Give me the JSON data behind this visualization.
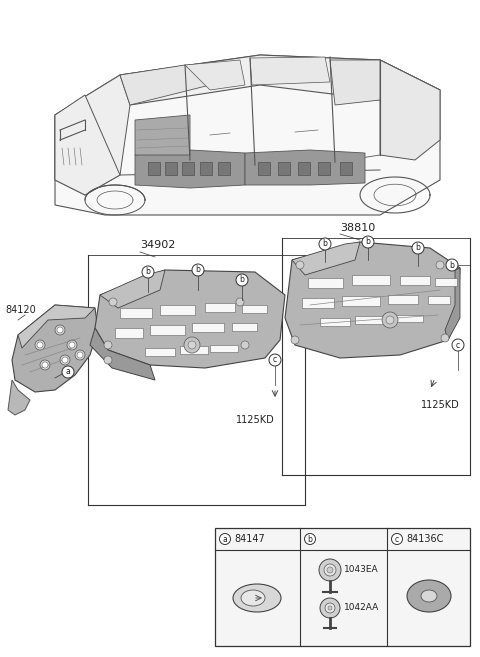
{
  "bg_color": "#ffffff",
  "text_color": "#222222",
  "line_color": "#444444",
  "part_fill_dark": "#888888",
  "part_fill_mid": "#aaaaaa",
  "part_fill_light": "#cccccc",
  "callout_fc": "#ffffff",
  "callout_ec": "#333333",
  "box_color": "#333333",
  "legend_bg": "#f5f5f5",
  "part_labels": {
    "p84120": "84120",
    "p34902": "34902",
    "p38810": "38810",
    "p1125kd_mid": "1125KD",
    "p1125kd_right": "1125KD",
    "leg_a": "84147",
    "leg_b1": "1043EA",
    "leg_b2": "1042AA",
    "leg_c": "84136C"
  },
  "fig_w": 4.8,
  "fig_h": 6.57,
  "dpi": 100
}
